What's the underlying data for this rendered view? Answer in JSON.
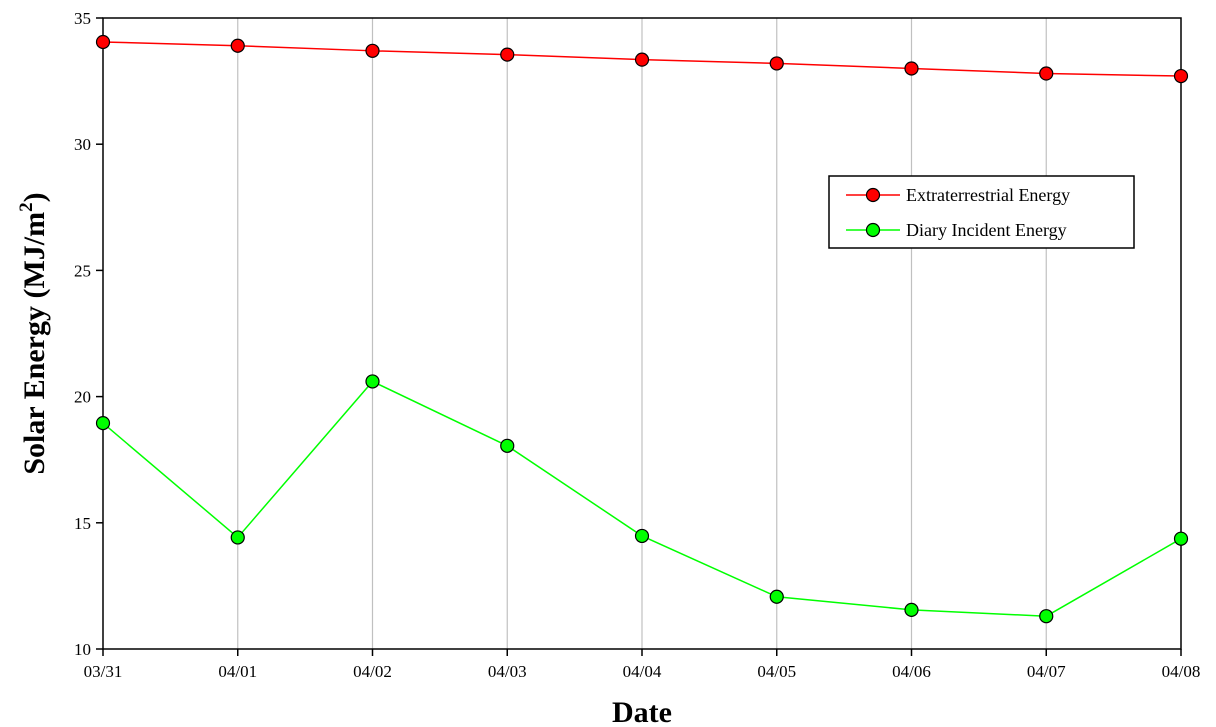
{
  "chart_data": {
    "type": "line",
    "title": "",
    "xlabel": "Date",
    "ylabel": "Solar Energy (MJ/m",
    "ylabel_superscript": "2",
    "ylabel_close": ")",
    "categories": [
      "03/31",
      "04/01",
      "04/02",
      "04/03",
      "04/04",
      "04/05",
      "04/06",
      "04/07",
      "04/08"
    ],
    "ylim": [
      10,
      35
    ],
    "yticks": [
      10,
      15,
      20,
      25,
      30,
      35
    ],
    "grid": {
      "vertical": true,
      "horizontal": false
    },
    "legend_position": "right, upper-middle",
    "series": [
      {
        "name": "Extraterrestrial Energy",
        "color": "#ff0000",
        "marker_color": "#ff0000",
        "values": [
          34.05,
          33.9,
          33.7,
          33.55,
          33.35,
          33.2,
          33.0,
          32.8,
          32.7
        ]
      },
      {
        "name": "Diary Incident Energy",
        "color": "#00ff00",
        "marker_color": "#00ff00",
        "values": [
          18.95,
          14.42,
          20.6,
          18.05,
          14.48,
          12.07,
          11.55,
          11.3,
          14.37
        ]
      }
    ]
  }
}
